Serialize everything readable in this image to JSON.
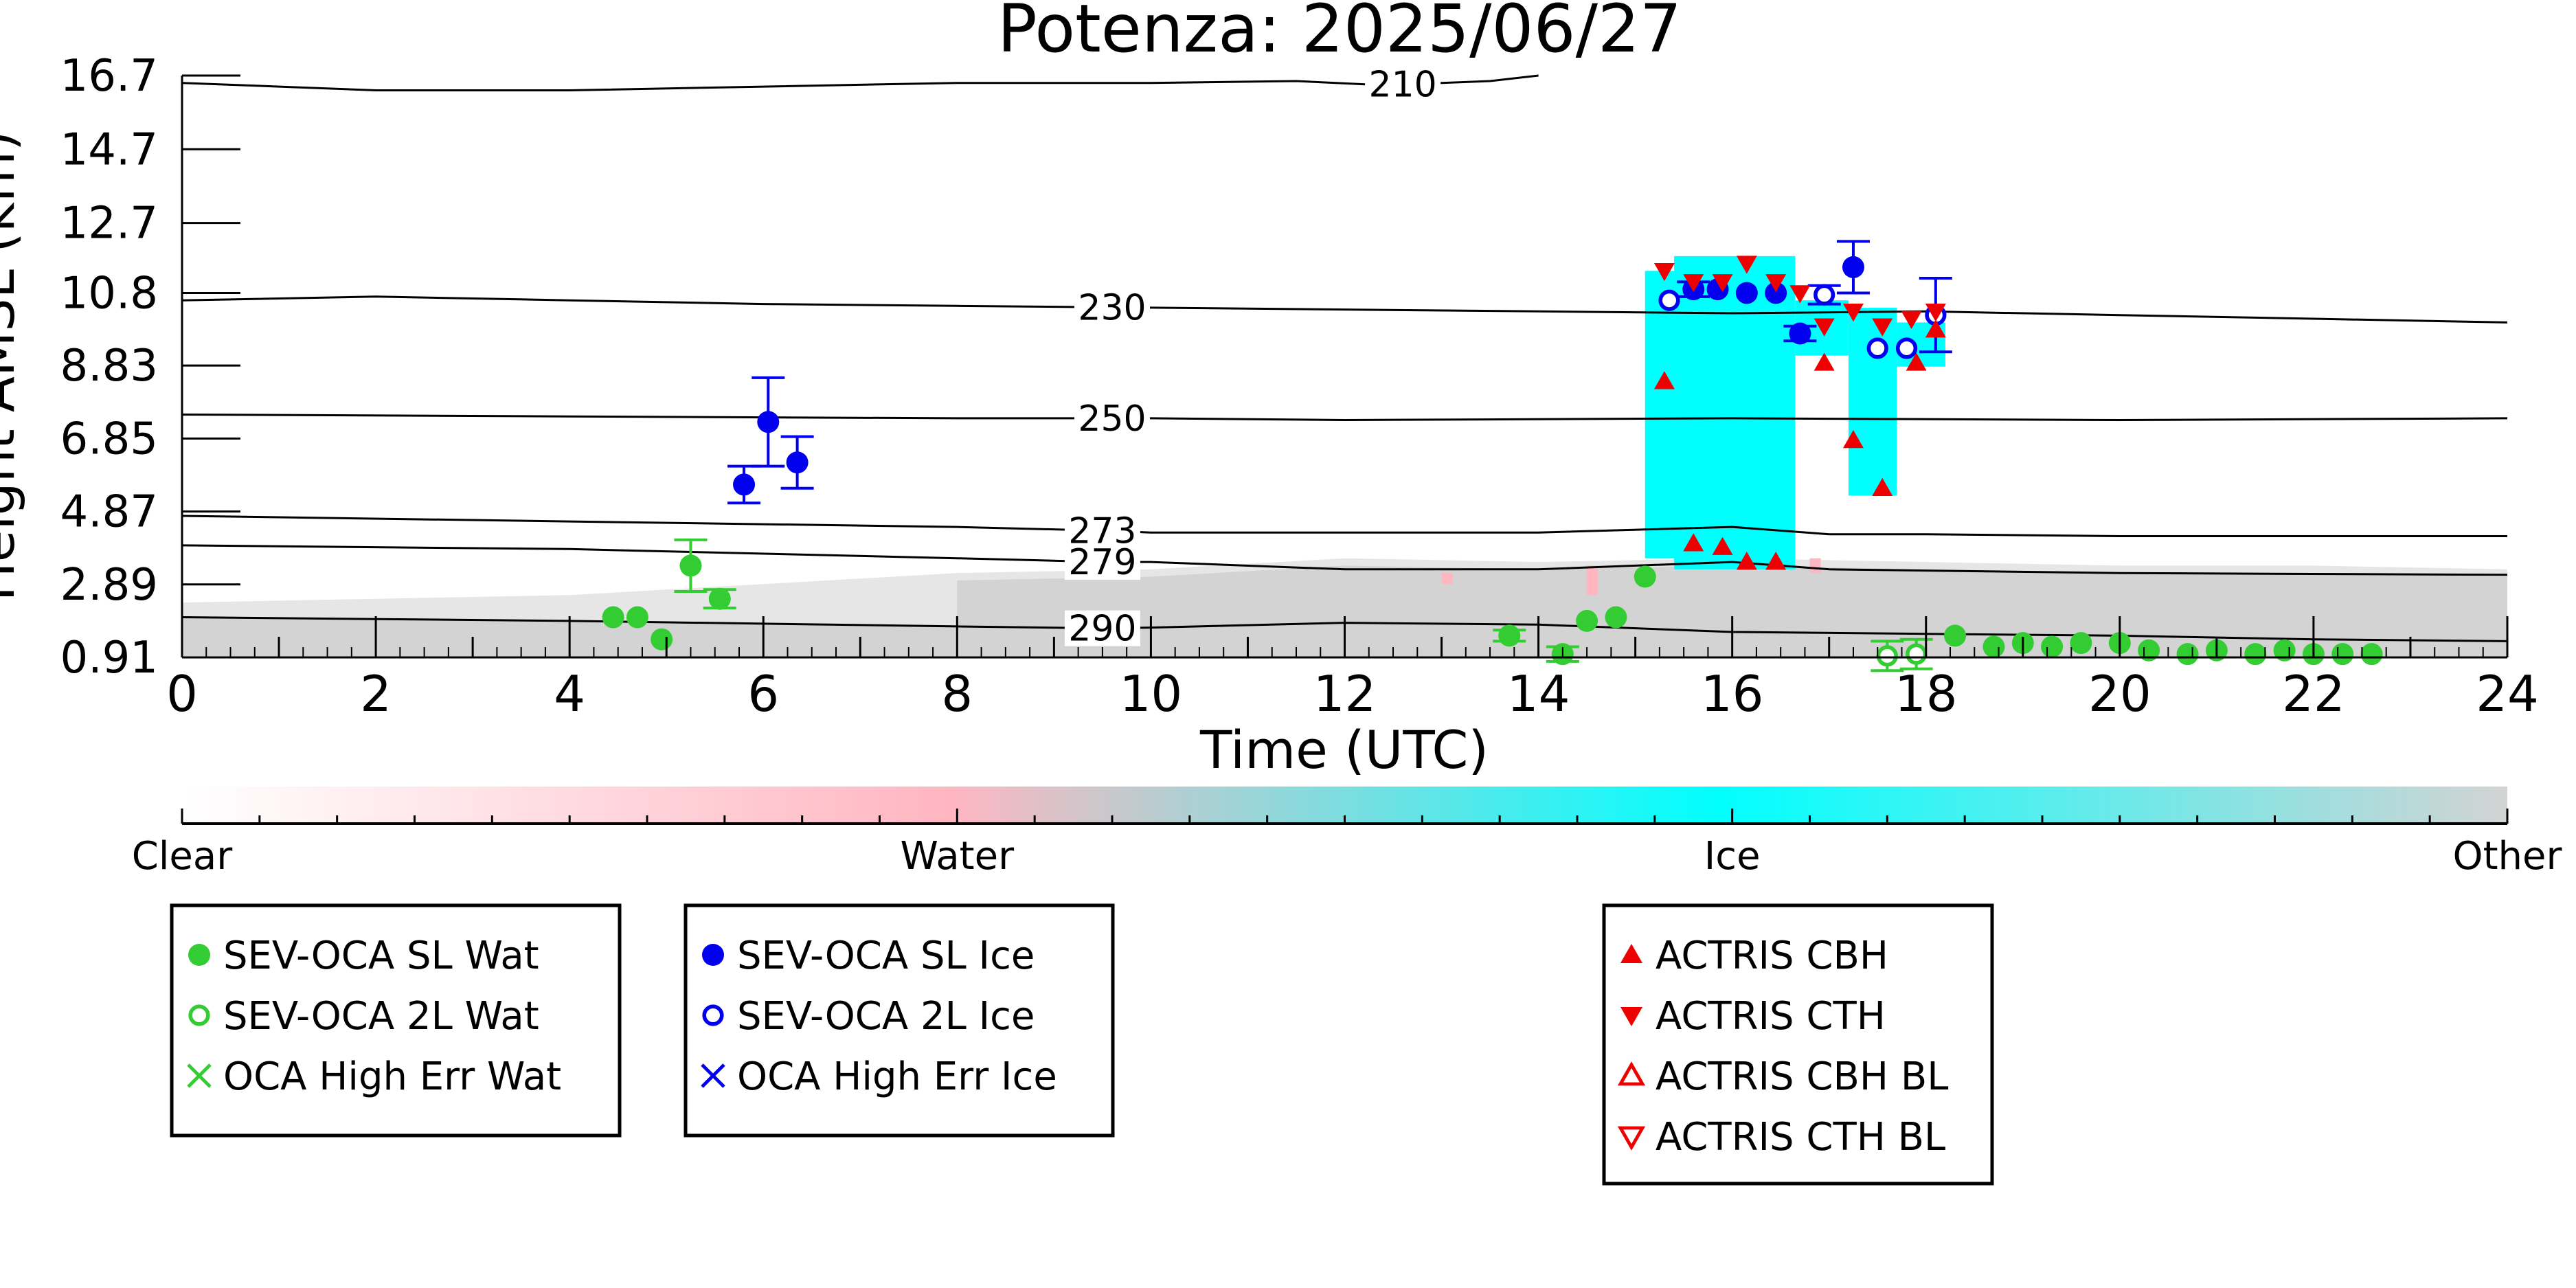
{
  "chart_data": {
    "type": "scatter",
    "title": "Potenza: 2025/06/27",
    "xlabel": "Time (UTC)",
    "ylabel": "Height AMSL (km)",
    "xlim": [
      0,
      24
    ],
    "ylim": [
      0.91,
      16.7
    ],
    "x_ticks": [
      "0",
      "2",
      "4",
      "6",
      "8",
      "10",
      "12",
      "14",
      "16",
      "18",
      "20",
      "22",
      "24"
    ],
    "y_ticks": [
      0.91,
      2.89,
      4.87,
      6.85,
      8.83,
      10.8,
      12.7,
      14.7,
      16.7
    ],
    "y_tick_labels": [
      "0.91",
      "2.89",
      "4.87",
      "6.85",
      "8.83",
      "10.8",
      "12.7",
      "14.7",
      "16.7"
    ],
    "grid": false,
    "colorbar": {
      "labels": [
        "Clear",
        "Water",
        "Ice",
        "Other"
      ],
      "colors": [
        "#ffffff",
        "#ffb6c1",
        "#00ffff",
        "#d3d3d3"
      ]
    },
    "isotherms": [
      {
        "label": "210",
        "label_x": 12.6,
        "points": [
          [
            0,
            16.5
          ],
          [
            2,
            16.3
          ],
          [
            4,
            16.3
          ],
          [
            6,
            16.4
          ],
          [
            8,
            16.5
          ],
          [
            10,
            16.5
          ],
          [
            11.5,
            16.55
          ],
          [
            12.3,
            16.45
          ],
          [
            13,
            16.5
          ],
          [
            13.5,
            16.55
          ],
          [
            14,
            16.7
          ]
        ]
      },
      {
        "label": "230",
        "label_x": 9.6,
        "points": [
          [
            0,
            10.6
          ],
          [
            2,
            10.7
          ],
          [
            4,
            10.6
          ],
          [
            6,
            10.5
          ],
          [
            8,
            10.45
          ],
          [
            10,
            10.4
          ],
          [
            12,
            10.35
          ],
          [
            14,
            10.3
          ],
          [
            16,
            10.25
          ],
          [
            18,
            10.3
          ],
          [
            20,
            10.2
          ],
          [
            22,
            10.1
          ],
          [
            24,
            10.0
          ]
        ]
      },
      {
        "label": "250",
        "label_x": 9.6,
        "points": [
          [
            0,
            7.5
          ],
          [
            4,
            7.45
          ],
          [
            8,
            7.4
          ],
          [
            10,
            7.4
          ],
          [
            12,
            7.35
          ],
          [
            16,
            7.4
          ],
          [
            20,
            7.35
          ],
          [
            24,
            7.4
          ]
        ]
      },
      {
        "label": "273",
        "label_x": 9.5,
        "points": [
          [
            0,
            4.75
          ],
          [
            4,
            4.6
          ],
          [
            8,
            4.45
          ],
          [
            9.5,
            4.35
          ],
          [
            10,
            4.3
          ],
          [
            12,
            4.3
          ],
          [
            14,
            4.3
          ],
          [
            16,
            4.45
          ],
          [
            17,
            4.25
          ],
          [
            18,
            4.25
          ],
          [
            20,
            4.2
          ],
          [
            24,
            4.2
          ]
        ]
      },
      {
        "label": "279",
        "label_x": 9.5,
        "points": [
          [
            0,
            3.95
          ],
          [
            4,
            3.85
          ],
          [
            8,
            3.6
          ],
          [
            9.5,
            3.5
          ],
          [
            10,
            3.5
          ],
          [
            12,
            3.3
          ],
          [
            14,
            3.3
          ],
          [
            16,
            3.5
          ],
          [
            17,
            3.3
          ],
          [
            20,
            3.2
          ],
          [
            24,
            3.15
          ]
        ]
      },
      {
        "label": "290",
        "label_x": 9.5,
        "points": [
          [
            0,
            2.0
          ],
          [
            4,
            1.9
          ],
          [
            8,
            1.75
          ],
          [
            9.5,
            1.7
          ],
          [
            10,
            1.72
          ],
          [
            12,
            1.85
          ],
          [
            14,
            1.8
          ],
          [
            16,
            1.6
          ],
          [
            18,
            1.55
          ],
          [
            20,
            1.5
          ],
          [
            22,
            1.4
          ],
          [
            24,
            1.35
          ]
        ]
      }
    ],
    "series": [
      {
        "name": "SEV-OCA SL Wat",
        "color": "#33cc33",
        "marker": "filled-circle",
        "x": [
          4.45,
          4.7,
          4.95,
          5.25,
          5.55,
          13.7,
          14.25,
          14.5,
          14.8,
          15.1,
          18.3,
          18.7,
          19.0,
          19.3,
          19.6,
          20.0,
          20.3,
          20.7,
          21.0,
          21.4,
          21.7,
          22.0,
          22.3,
          22.6
        ],
        "y": [
          2.0,
          2.0,
          1.4,
          3.4,
          2.5,
          1.5,
          1.0,
          1.9,
          2.0,
          3.1,
          1.5,
          1.2,
          1.3,
          1.2,
          1.3,
          1.3,
          1.1,
          1.0,
          1.1,
          1.0,
          1.1,
          1.0,
          1.0,
          1.0
        ],
        "yerr": [
          0,
          0,
          0,
          0.7,
          0.25,
          0.15,
          0.2,
          0,
          0,
          0,
          0,
          0,
          0,
          0,
          0,
          0,
          0,
          0,
          0,
          0,
          0,
          0,
          0,
          0
        ]
      },
      {
        "name": "SEV-OCA 2L Wat",
        "color": "#33cc33",
        "marker": "open-circle",
        "x": [
          17.6,
          17.9
        ],
        "y": [
          0.95,
          1.0
        ],
        "yerr": [
          0.4,
          0.4
        ]
      },
      {
        "name": "OCA High Err Wat",
        "color": "#33cc33",
        "marker": "x",
        "x": [],
        "y": []
      },
      {
        "name": "SEV-OCA SL Ice",
        "color": "#0000ee",
        "marker": "filled-circle",
        "x": [
          5.8,
          6.05,
          6.35,
          15.6,
          15.85,
          16.15,
          16.45,
          16.7,
          17.25
        ],
        "y": [
          5.6,
          7.3,
          6.2,
          10.9,
          10.9,
          10.8,
          10.8,
          9.7,
          11.5
        ],
        "yerr": [
          0.5,
          1.2,
          0.7,
          0.2,
          0,
          0,
          0,
          0.2,
          0.7
        ]
      },
      {
        "name": "SEV-OCA 2L Ice",
        "color": "#0000ee",
        "marker": "open-circle",
        "x": [
          15.35,
          16.95,
          17.5,
          17.8,
          18.1
        ],
        "y": [
          10.6,
          10.75,
          9.3,
          9.3,
          10.2
        ],
        "yerr": [
          0,
          0.25,
          0,
          0,
          1.0
        ]
      },
      {
        "name": "OCA High Err Ice",
        "color": "#0000ee",
        "marker": "x",
        "x": [],
        "y": []
      },
      {
        "name": "ACTRIS CBH",
        "color": "#ee0000",
        "marker": "up-triangle",
        "x": [
          15.3,
          15.6,
          15.9,
          16.15,
          16.45,
          16.95,
          17.25,
          17.55,
          17.9,
          18.1
        ],
        "y": [
          8.4,
          4.0,
          3.9,
          3.5,
          3.5,
          8.9,
          6.8,
          5.5,
          8.9,
          9.8
        ]
      },
      {
        "name": "ACTRIS CTH",
        "color": "#ee0000",
        "marker": "down-triangle",
        "x": [
          15.3,
          15.6,
          15.9,
          16.15,
          16.45,
          16.7,
          16.95,
          17.25,
          17.55,
          17.85,
          18.1
        ],
        "y": [
          11.4,
          11.1,
          11.1,
          11.6,
          11.1,
          10.8,
          9.9,
          10.3,
          9.9,
          10.1,
          10.3
        ]
      },
      {
        "name": "ACTRIS CBH BL",
        "color": "#ee0000",
        "marker": "open-up-triangle",
        "x": [],
        "y": []
      },
      {
        "name": "ACTRIS CTH BL",
        "color": "#ee0000",
        "marker": "open-down-triangle",
        "x": [],
        "y": []
      }
    ],
    "ice_cloud_regions": [
      {
        "t0": 15.1,
        "t1": 15.4,
        "ybot": 3.6,
        "ytop": 11.4
      },
      {
        "t0": 15.4,
        "t1": 16.65,
        "ybot": 3.3,
        "ytop": 11.8
      },
      {
        "t0": 16.65,
        "t1": 17.2,
        "ybot": 9.1,
        "ytop": 10.6
      },
      {
        "t0": 17.2,
        "t1": 17.7,
        "ybot": 5.3,
        "ytop": 10.4
      },
      {
        "t0": 17.7,
        "t1": 18.2,
        "ybot": 8.8,
        "ytop": 10.0
      }
    ],
    "other_layer_top": [
      [
        0,
        2.4
      ],
      [
        2,
        2.5
      ],
      [
        4,
        2.6
      ],
      [
        8,
        3.2
      ],
      [
        10,
        3.3
      ],
      [
        12,
        3.6
      ],
      [
        14,
        3.5
      ],
      [
        16,
        3.6
      ],
      [
        18,
        3.5
      ],
      [
        20,
        3.4
      ],
      [
        22,
        3.4
      ],
      [
        24,
        3.3
      ]
    ],
    "other_dense_top": [
      [
        0,
        2.0
      ],
      [
        4,
        1.9
      ],
      [
        8,
        1.75
      ],
      [
        10,
        1.72
      ],
      [
        12,
        1.85
      ],
      [
        14,
        1.8
      ],
      [
        16,
        1.6
      ],
      [
        18,
        1.55
      ],
      [
        20,
        1.5
      ],
      [
        24,
        1.35
      ]
    ]
  },
  "legend_boxes": [
    {
      "entries": [
        "SEV-OCA SL Wat",
        "SEV-OCA 2L Wat",
        "OCA High Err Wat"
      ]
    },
    {
      "entries": [
        "SEV-OCA SL Ice",
        "SEV-OCA 2L Ice",
        "OCA High Err Ice"
      ]
    },
    {
      "entries": [
        "ACTRIS CBH",
        "ACTRIS CTH",
        "ACTRIS CBH BL",
        "ACTRIS CTH BL"
      ]
    }
  ]
}
